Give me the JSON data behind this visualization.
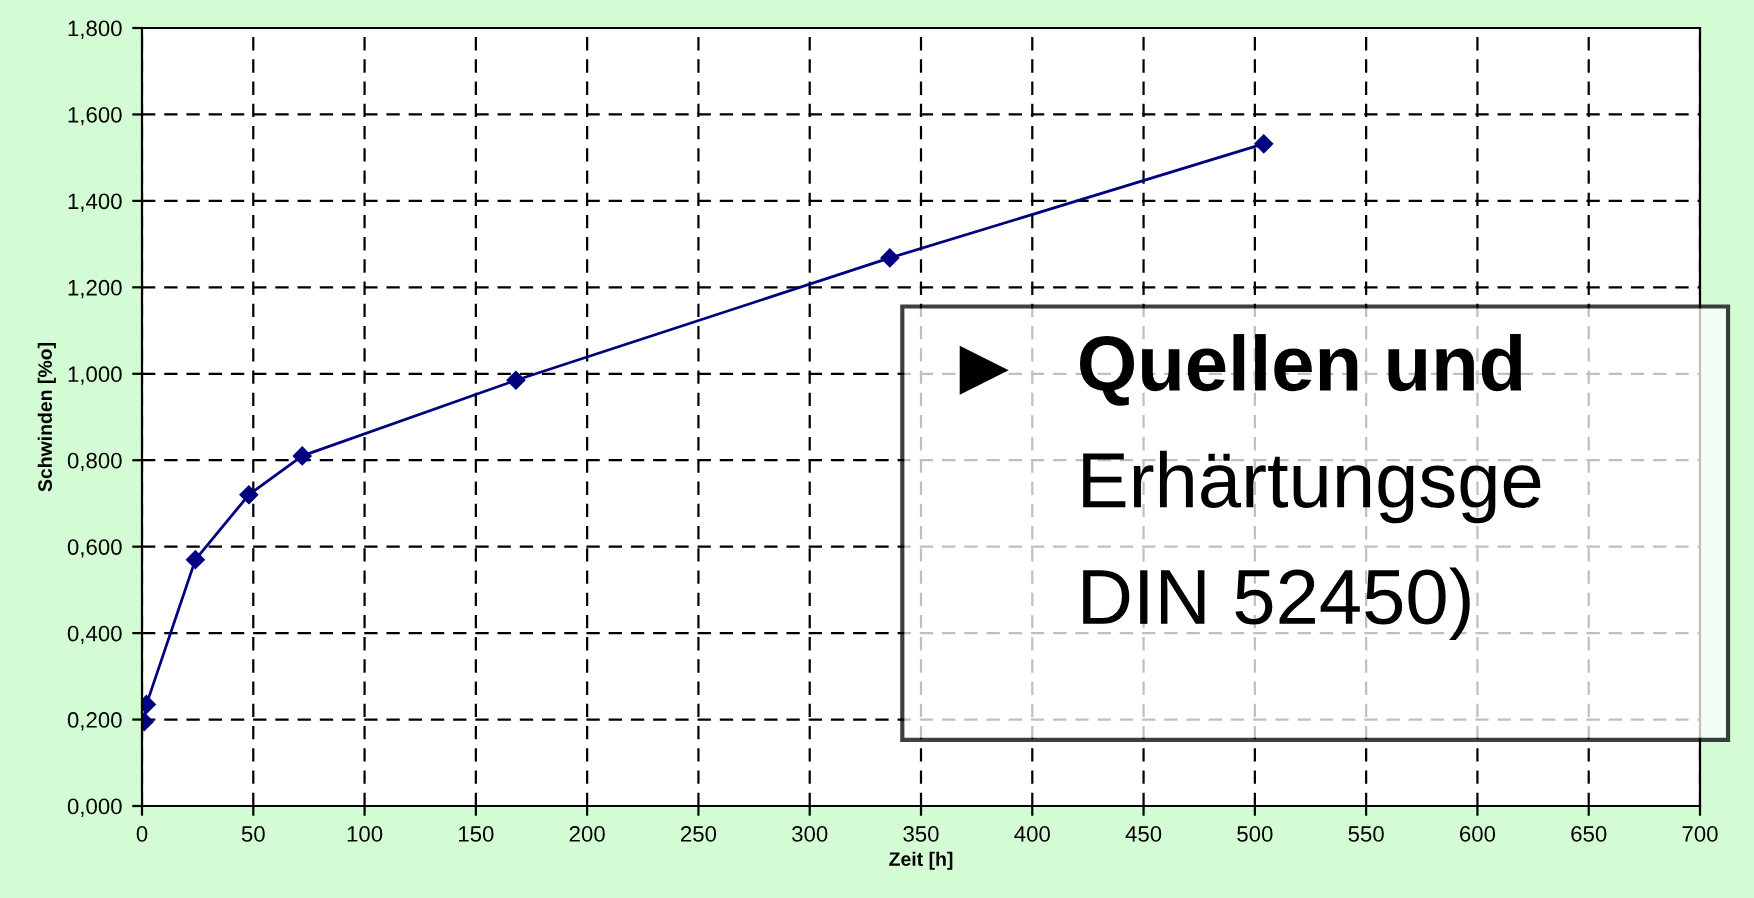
{
  "chart_data": {
    "type": "line",
    "xlabel": "Zeit [h]",
    "ylabel": "Schwinden [%o]",
    "x": [
      1,
      2,
      24,
      48,
      72,
      168,
      336,
      504
    ],
    "series": [
      {
        "color": "#000080",
        "values": [
          0.195,
          0.235,
          0.57,
          0.72,
          0.81,
          0.985,
          1.268,
          1.532
        ]
      }
    ],
    "xlim": [
      0,
      700
    ],
    "xticks": [
      0,
      50,
      100,
      150,
      200,
      250,
      300,
      350,
      400,
      450,
      500,
      550,
      600,
      650,
      700
    ],
    "ylim": [
      0,
      1.8
    ],
    "yticks": [
      {
        "value": 0,
        "label": "0,000"
      },
      {
        "value": 0.2,
        "label": "0,200"
      },
      {
        "value": 0.4,
        "label": "0,400"
      },
      {
        "value": 0.6,
        "label": "0,600"
      },
      {
        "value": 0.8,
        "label": "0,800"
      },
      {
        "value": 1.0,
        "label": "1,000"
      },
      {
        "value": 1.2,
        "label": "1,200"
      },
      {
        "value": 1.4,
        "label": "1,400"
      },
      {
        "value": 1.6,
        "label": "1,600"
      },
      {
        "value": 1.8,
        "label": "1,800"
      }
    ],
    "grid": true,
    "marker": "diamond",
    "line_style": "solid",
    "annotations": [
      "Quellen und",
      "Erhärtungsge",
      "DIN 52450)"
    ]
  }
}
